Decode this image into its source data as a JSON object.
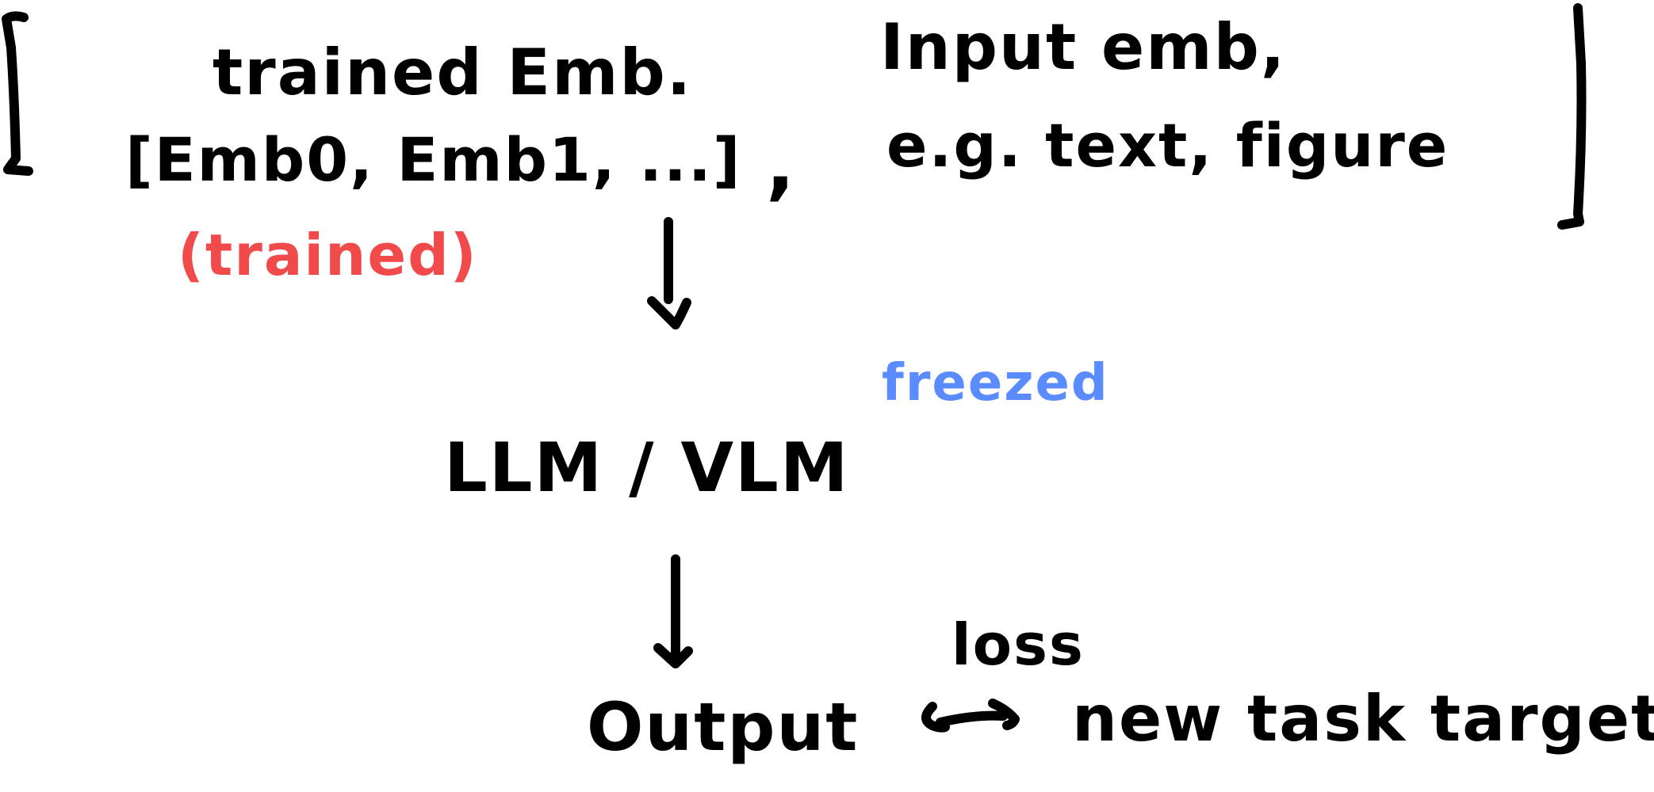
{
  "colors": {
    "ink": "#000000",
    "trained": "#f04a4a",
    "frozen": "#5b8cff"
  },
  "diagram": {
    "top_left": {
      "title": "trained Emb.",
      "list": "[Emb0, Emb1, ...]",
      "tag": "(trained)"
    },
    "comma": ",",
    "top_right": {
      "line1": "Input emb,",
      "line2": "e.g. text, figure"
    },
    "model": {
      "label": "LLM / VLM",
      "tag": "freezed"
    },
    "output": {
      "label": "Output",
      "loss": "loss",
      "target": "new task target"
    }
  }
}
